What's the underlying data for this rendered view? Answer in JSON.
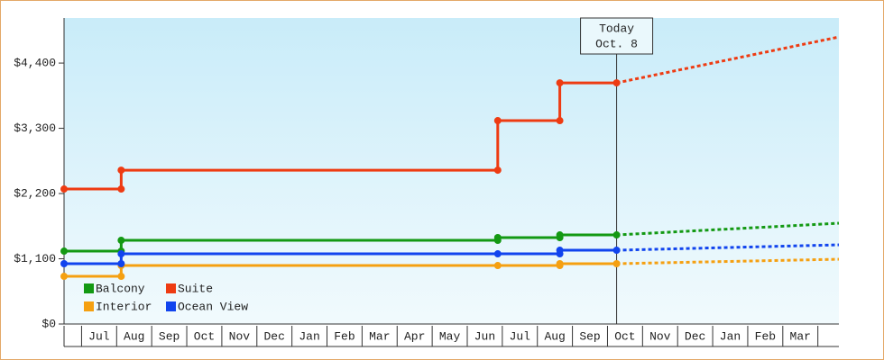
{
  "chart_data": {
    "type": "step",
    "categories": [
      null,
      "Jul",
      "Aug",
      "Sep",
      "Oct",
      "Nov",
      "Dec",
      "Jan",
      "Feb",
      "Mar",
      "Apr",
      "May",
      "Jun",
      "Jul",
      "Aug",
      "Sep",
      "Oct",
      "Nov",
      "Dec",
      "Jan",
      "Feb",
      "Mar"
    ],
    "xlim": [
      0.5,
      22.6
    ],
    "ylim": [
      0,
      5160
    ],
    "yticks": [
      0,
      {
        "value": 1100,
        "label": "$1,100"
      },
      {
        "value": 2200,
        "label": "$2,200"
      },
      {
        "value": 3300,
        "label": "$3,300"
      },
      {
        "value": 4400,
        "label": "$4,400"
      }
    ],
    "y_zero_label": "$0",
    "today": {
      "x": 16.26,
      "label": "Today",
      "date": "Oct. 8"
    },
    "series": [
      {
        "name": "Balcony",
        "color": "#139913",
        "x": [
          0.5,
          2.13,
          12.87,
          14.64,
          16.26
        ],
        "values": [
          1229,
          1411,
          1457,
          1502,
          1502
        ],
        "forecast": {
          "x": [
            16.26,
            22.6
          ],
          "values": [
            1502,
            1699
          ]
        }
      },
      {
        "name": "Suite",
        "color": "#ee3b12",
        "x": [
          0.5,
          2.13,
          12.87,
          14.64,
          16.26
        ],
        "values": [
          2276,
          2594,
          3429,
          4066,
          4066
        ],
        "forecast": {
          "x": [
            16.26,
            22.6
          ],
          "values": [
            4066,
            4840
          ]
        }
      },
      {
        "name": "Interior",
        "color": "#f5a011",
        "x": [
          0.5,
          2.13,
          12.87,
          14.64,
          16.26
        ],
        "values": [
          804,
          986,
          986,
          1017,
          1017
        ],
        "forecast": {
          "x": [
            16.26,
            22.6
          ],
          "values": [
            1017,
            1092
          ]
        }
      },
      {
        "name": "Ocean View",
        "color": "#1144ee",
        "x": [
          0.5,
          2.13,
          12.87,
          14.64,
          16.26
        ],
        "values": [
          1017,
          1183,
          1183,
          1244,
          1244
        ],
        "forecast": {
          "x": [
            16.26,
            22.6
          ],
          "values": [
            1244,
            1335
          ]
        }
      }
    ]
  }
}
